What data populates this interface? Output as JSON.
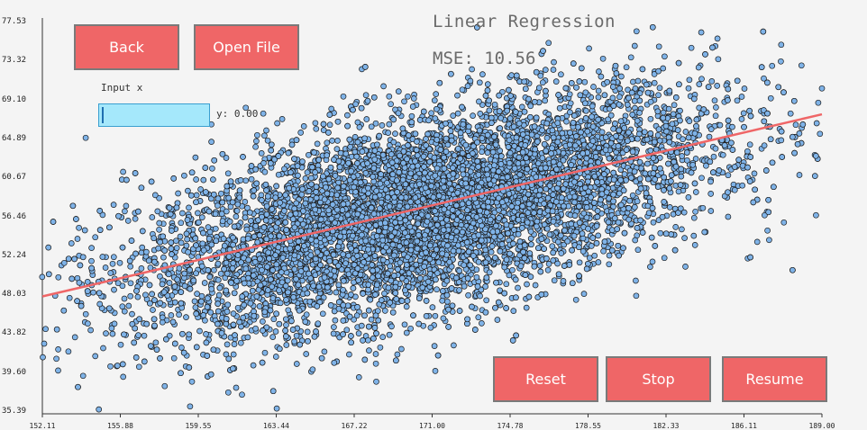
{
  "chart_data": {
    "type": "scatter",
    "title": "Linear Regression",
    "mse_label": "MSE: 10.56",
    "xlim": [
      152.11,
      189.0
    ],
    "ylim": [
      35.39,
      77.53
    ],
    "x_ticks": [
      "152.11",
      "155.88",
      "159.55",
      "163.44",
      "167.22",
      "171.00",
      "174.78",
      "178.55",
      "182.33",
      "186.11",
      "189.00"
    ],
    "y_ticks": [
      "77.53",
      "73.32",
      "69.10",
      "64.89",
      "60.67",
      "56.46",
      "52.24",
      "48.03",
      "43.82",
      "39.60",
      "35.39"
    ],
    "regression_line": {
      "x": [
        152.11,
        189.0
      ],
      "y": [
        47.7,
        67.4
      ],
      "color": "#ef6667"
    },
    "point_cloud": {
      "count": 9000,
      "center": [
        170.2,
        56.9
      ],
      "trend_slope": 0.535,
      "spread_x": 6.8,
      "spread_y": 7.2
    },
    "point_color": "#7fb3e8",
    "point_edge": "#1a1a1a",
    "outliers": [
      [
        152.1,
        49.8
      ],
      [
        155.3,
        49.3
      ],
      [
        157.6,
        52.9
      ],
      [
        157.9,
        38.0
      ],
      [
        159.1,
        35.8
      ],
      [
        186.5,
        53.8
      ],
      [
        187.2,
        55.7
      ],
      [
        189.0,
        70.2
      ],
      [
        164.9,
        39.8
      ],
      [
        176.0,
        37.3
      ]
    ]
  },
  "buttons": {
    "back": "Back",
    "open_file": "Open File",
    "reset": "Reset",
    "stop": "Stop",
    "resume": "Resume"
  },
  "input": {
    "label": "Input x",
    "value": "",
    "output": "y: 0.00"
  },
  "colors": {
    "button": "#ef6667",
    "input_bg": "#a5e8fb",
    "background": "#f4f4f4"
  }
}
